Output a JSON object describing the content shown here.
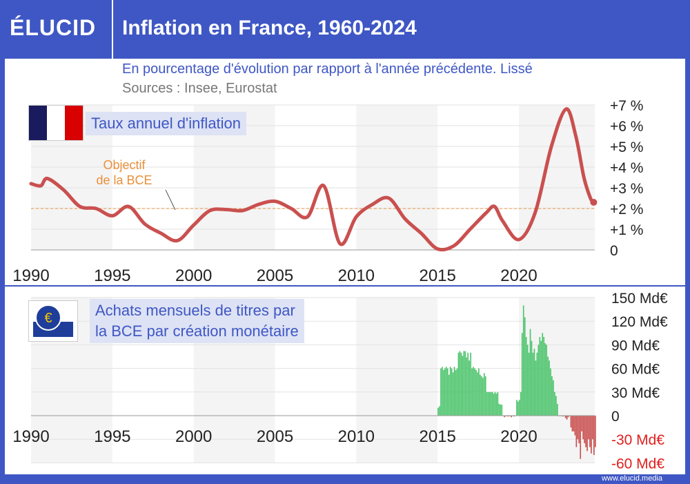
{
  "header": {
    "logo": "ÉLUCID",
    "title": "Inflation en France, 1960-2024"
  },
  "subtitle": "En pourcentage d'évolution par rapport à l'année précédente. Lissé",
  "sources": "Sources : Insee, Eurostat",
  "watermark": "www.elucid.media",
  "colors": {
    "header": "#3f57c4",
    "line": "#c9504f",
    "positive_bar": "#4cc46c",
    "negative_bar": "#c9504f",
    "target": "#e8903a",
    "negative_tick": "#e0201e"
  },
  "chart_data": [
    {
      "type": "line",
      "label": "Taux annuel d'inflation",
      "icon": "france-flag-icon",
      "xlim": [
        1990,
        2024.7
      ],
      "ylim": [
        0,
        7
      ],
      "x_ticks": [
        "1990",
        "1995",
        "2000",
        "2005",
        "2010",
        "2015",
        "2020"
      ],
      "y_ticks": [
        "0",
        "+1 %",
        "+2 %",
        "+3 %",
        "+4 %",
        "+5 %",
        "+6 %",
        "+7 %"
      ],
      "grid": true,
      "target": {
        "value": 2,
        "label_line1": "Objectif",
        "label_line2": "de la BCE"
      },
      "x": [
        1990,
        1990.6,
        1991,
        1992,
        1993,
        1994,
        1995,
        1996,
        1997,
        1998,
        1999,
        2000,
        2001,
        2002,
        2003,
        2004,
        2005,
        2006,
        2007,
        2008,
        2009,
        2010,
        2011,
        2012,
        2013,
        2014,
        2015,
        2016,
        2017,
        2018,
        2018.5,
        2019,
        2020,
        2021,
        2022,
        2022.9,
        2023.5,
        2024,
        2024.4,
        2024.6
      ],
      "y": [
        3.2,
        3.1,
        3.45,
        2.9,
        2.1,
        2.0,
        1.65,
        2.1,
        1.25,
        0.8,
        0.45,
        1.2,
        1.9,
        1.95,
        1.9,
        2.2,
        2.35,
        2.0,
        1.6,
        3.1,
        0.3,
        1.6,
        2.2,
        2.5,
        1.5,
        0.8,
        0.05,
        0.2,
        1.0,
        1.8,
        2.1,
        1.4,
        0.5,
        1.8,
        5.0,
        6.8,
        5.5,
        3.5,
        2.5,
        2.3
      ]
    },
    {
      "type": "bar",
      "label_line1": "Achats mensuels de titres par",
      "label_line2": "la BCE par création monétaire",
      "icon": "ecb-euro-icon",
      "unit": "Md€",
      "start": "2015-01",
      "frequency": "monthly",
      "xlim": [
        1990,
        2024.7
      ],
      "ylim": [
        -60,
        150
      ],
      "x_ticks": [
        "1990",
        "1995",
        "2000",
        "2005",
        "2010",
        "2015",
        "2020"
      ],
      "y_ticks": [
        "-60 Md€",
        "-30 Md€",
        "0",
        "30 Md€",
        "60 Md€",
        "90 Md€",
        "120 Md€",
        "150 Md€"
      ],
      "grid": true,
      "values": [
        10,
        12,
        60,
        62,
        58,
        60,
        62,
        60,
        52,
        62,
        60,
        55,
        62,
        58,
        60,
        80,
        82,
        80,
        76,
        82,
        82,
        74,
        80,
        70,
        80,
        60,
        62,
        60,
        58,
        55,
        60,
        52,
        50,
        48,
        54,
        50,
        30,
        30,
        30,
        30,
        30,
        28,
        30,
        28,
        30,
        15,
        14,
        14,
        0,
        -2,
        0,
        -1,
        -1,
        0,
        -2,
        0,
        -1,
        0,
        20,
        18,
        20,
        30,
        105,
        140,
        125,
        100,
        90,
        80,
        110,
        95,
        80,
        85,
        70,
        80,
        90,
        100,
        95,
        105,
        100,
        92,
        90,
        75,
        70,
        60,
        50,
        45,
        30,
        25,
        15,
        0,
        0,
        0,
        -1,
        0,
        -3,
        -5,
        -2,
        0,
        -15,
        -20,
        -20,
        -25,
        -40,
        -30,
        -35,
        -55,
        -20,
        -30,
        -35,
        -40,
        -45,
        -30,
        -40,
        -48,
        -30,
        -50,
        -40
      ]
    }
  ]
}
